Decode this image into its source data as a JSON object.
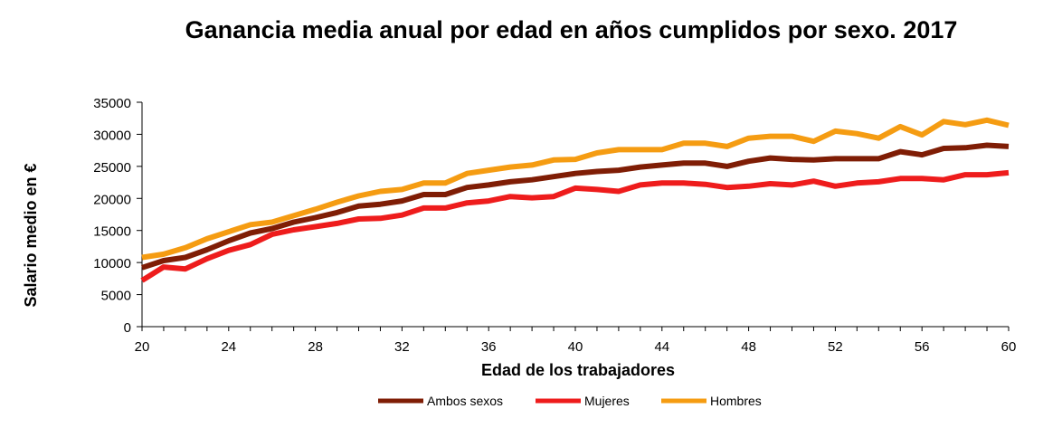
{
  "chart_data": {
    "type": "line",
    "title": "Ganancia media anual por edad en años cumplidos por sexo. 2017",
    "xlabel": "Edad de los trabajadores",
    "ylabel": "Salario medio en €",
    "xlim": [
      20,
      60
    ],
    "ylim": [
      0,
      35000
    ],
    "x_ticks": [
      20,
      24,
      28,
      32,
      36,
      40,
      44,
      48,
      52,
      56,
      60
    ],
    "y_ticks": [
      0,
      5000,
      10000,
      15000,
      20000,
      25000,
      30000,
      35000
    ],
    "grid": false,
    "legend_position": "bottom",
    "x": [
      20,
      21,
      22,
      23,
      24,
      25,
      26,
      27,
      28,
      29,
      30,
      31,
      32,
      33,
      34,
      35,
      36,
      37,
      38,
      39,
      40,
      41,
      42,
      43,
      44,
      45,
      46,
      47,
      48,
      49,
      50,
      51,
      52,
      53,
      54,
      55,
      56,
      57,
      58,
      59,
      60
    ],
    "series": [
      {
        "name": "Ambos sexos",
        "color": "#7f1d05",
        "values": [
          9200,
          10300,
          10800,
          12000,
          13400,
          14600,
          15300,
          16300,
          17000,
          17800,
          18800,
          19100,
          19600,
          20600,
          20600,
          21700,
          22100,
          22600,
          22900,
          23400,
          23900,
          24200,
          24400,
          24900,
          25200,
          25500,
          25500,
          25000,
          25800,
          26300,
          26100,
          26000,
          26200,
          26200,
          26200,
          27300,
          26800,
          27800,
          27900,
          28300,
          28100
        ]
      },
      {
        "name": "Mujeres",
        "color": "#ee1c1c",
        "values": [
          7200,
          9300,
          9000,
          10600,
          11900,
          12800,
          14400,
          15100,
          15600,
          16100,
          16800,
          16900,
          17400,
          18500,
          18500,
          19300,
          19600,
          20300,
          20100,
          20300,
          21600,
          21400,
          21100,
          22100,
          22400,
          22400,
          22200,
          21700,
          21900,
          22300,
          22100,
          22700,
          21900,
          22400,
          22600,
          23100,
          23100,
          22900,
          23700,
          23700,
          24000
        ]
      },
      {
        "name": "Hombres",
        "color": "#f59c12",
        "values": [
          10800,
          11300,
          12300,
          13700,
          14800,
          15900,
          16300,
          17300,
          18300,
          19400,
          20400,
          21100,
          21400,
          22400,
          22400,
          23900,
          24400,
          24900,
          25200,
          26000,
          26100,
          27100,
          27600,
          27600,
          27600,
          28600,
          28600,
          28100,
          29400,
          29700,
          29700,
          28900,
          30500,
          30100,
          29400,
          31200,
          29900,
          32000,
          31500,
          32200,
          31400
        ]
      }
    ]
  }
}
